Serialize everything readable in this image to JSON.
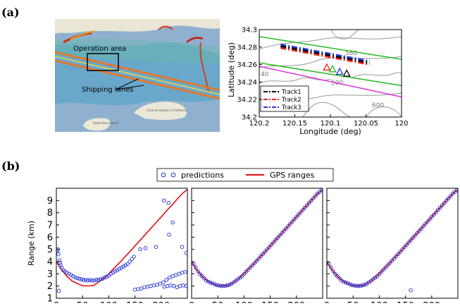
{
  "panels": {
    "a": "(a)",
    "b": "(b)"
  },
  "map": {
    "labels": [
      "Operation  area",
      "Shipping  lanes",
      "Santa Rosa Island",
      "Channel Islands of California"
    ],
    "colors": {
      "sea": "#8fb1cf",
      "land": "#ece8d8",
      "density_low": "#4aa0c8",
      "density_high": "#d83010",
      "lane": "#e07830"
    }
  },
  "chart_data": [
    {
      "type": "line",
      "title": "",
      "xlabel": "Longitude (deg)",
      "ylabel": "Latitude (deg)",
      "xlim": [
        120.2,
        120.0
      ],
      "ylim": [
        34.2,
        34.3
      ],
      "x_ticks": [
        "120.2",
        "120.15",
        "120.1",
        "120.05",
        "120"
      ],
      "y_ticks": [
        "34.2",
        "34.22",
        "34.24",
        "34.26",
        "34.28",
        "34.3"
      ],
      "contour_labels": [
        "580",
        "600",
        "40",
        "500"
      ],
      "legend": {
        "placement": "lower-left",
        "entries": [
          {
            "name": "Track1",
            "color": "#000000"
          },
          {
            "name": "Track2",
            "color": "#e8231c"
          },
          {
            "name": "Track3",
            "color": "#2437d6"
          }
        ]
      },
      "series": [
        {
          "name": "Track1",
          "color": "#000000",
          "x": [
            120.17,
            120.045
          ],
          "y": [
            34.281,
            34.262
          ]
        },
        {
          "name": "Track2",
          "color": "#e8231c",
          "x": [
            120.17,
            120.045
          ],
          "y": [
            34.279,
            34.26
          ]
        },
        {
          "name": "Track3",
          "color": "#2437d6",
          "x": [
            120.17,
            120.045
          ],
          "y": [
            34.283,
            34.264
          ]
        }
      ],
      "lanes": [
        {
          "color": "#22bb22",
          "x": [
            120.2,
            120.0
          ],
          "y": [
            34.292,
            34.266
          ]
        },
        {
          "color": "#22bb22",
          "x": [
            120.2,
            120.0
          ],
          "y": [
            34.262,
            34.236
          ]
        },
        {
          "color": "#dd33dd",
          "x": [
            120.2,
            120.0
          ],
          "y": [
            34.258,
            34.223
          ]
        }
      ],
      "triangles": [
        {
          "color": "#e8231c",
          "x": 120.105,
          "y": 34.257
        },
        {
          "color": "#22bb22",
          "x": 120.097,
          "y": 34.255
        },
        {
          "color": "#2437d6",
          "x": 120.087,
          "y": 34.252
        },
        {
          "color": "#000000",
          "x": 120.077,
          "y": 34.25
        }
      ]
    },
    {
      "type": "scatter",
      "legend": {
        "placement": "top",
        "entries": [
          {
            "name": "predictions",
            "color": "#1f2ed6",
            "marker": "circle"
          },
          {
            "name": "GPS ranges",
            "color": "#e01010",
            "marker": "line"
          }
        ]
      },
      "ylabel": "Range (km)",
      "xlim": [
        0,
        250
      ],
      "ylim": [
        1,
        10
      ],
      "x_ticks": [
        "0",
        "50",
        "100",
        "150",
        "200"
      ],
      "y_ticks": [
        "1",
        "2",
        "3",
        "4",
        "5",
        "6",
        "7",
        "8",
        "9"
      ],
      "gps_ranges": {
        "x": [
          0,
          10,
          20,
          30,
          40,
          50,
          60,
          70,
          80,
          90,
          100,
          110,
          120,
          130,
          140,
          150,
          160,
          170,
          180,
          190,
          200,
          210,
          220,
          230,
          240,
          250
        ],
        "y": [
          4.0,
          3.32,
          2.8,
          2.42,
          2.2,
          2.02,
          2.01,
          2.03,
          2.3,
          2.62,
          3.0,
          3.45,
          3.88,
          4.35,
          4.8,
          5.28,
          5.75,
          6.23,
          6.7,
          7.18,
          7.65,
          8.13,
          8.6,
          9.08,
          9.55,
          9.9
        ]
      },
      "subplots": [
        {
          "predictions_pattern": "noisy",
          "predictions": {
            "x": [
              2,
              4,
              6,
              8,
              10,
              13,
              16,
              20,
              24,
              28,
              32,
              36,
              40,
              44,
              48,
              52,
              56,
              60,
              64,
              68,
              72,
              76,
              80,
              84,
              88,
              92,
              96,
              100,
              104,
              108,
              112,
              116,
              120,
              124,
              128,
              132,
              136,
              140,
              144,
              148,
              3,
              5,
              7,
              150,
              156,
              162,
              168,
              174,
              180,
              186,
              192,
              198,
              204,
              210,
              216,
              222,
              228,
              234,
              240,
              246,
              236,
              242,
              248,
              206,
              212,
              218,
              224,
              230,
              160,
              170,
              190,
              205,
              214,
              215,
              222,
              240,
              248
            ],
            "y": [
              4.9,
              4.6,
              4.1,
              3.7,
              3.5,
              3.3,
              3.2,
              3.1,
              3.0,
              2.9,
              2.8,
              2.7,
              2.65,
              2.6,
              2.55,
              2.5,
              2.5,
              2.45,
              2.5,
              2.45,
              2.45,
              2.5,
              2.5,
              2.55,
              2.6,
              2.7,
              2.75,
              2.85,
              3.0,
              3.1,
              3.2,
              3.3,
              3.4,
              3.5,
              3.6,
              3.7,
              3.8,
              4.0,
              4.2,
              4.4,
              5.0,
              1.6,
              3.9,
              1.7,
              1.75,
              1.8,
              1.9,
              1.95,
              2.0,
              2.05,
              2.1,
              2.2,
              2.3,
              2.5,
              2.7,
              2.8,
              2.9,
              3.0,
              3.1,
              3.15,
              2.0,
              2.05,
              2.0,
              1.95,
              2.0,
              2.05,
              2.0,
              1.9,
              5.0,
              5.1,
              5.2,
              9.0,
              8.8,
              6.2,
              7.2,
              5.2,
              4.7
            ]
          }
        },
        {
          "predictions_pattern": "tight",
          "predictions": {
            "x": [
              4,
              8,
              12,
              16,
              20,
              24,
              28,
              32,
              36,
              40,
              44,
              48,
              52,
              56,
              60,
              64,
              68,
              72,
              76,
              80,
              84,
              88,
              92,
              96,
              100,
              104,
              108,
              112,
              116,
              120,
              124,
              128,
              132,
              136,
              140,
              144,
              148,
              152,
              156,
              160,
              164,
              168,
              172,
              176,
              180,
              184,
              188,
              192,
              196,
              200,
              204,
              208,
              212,
              216,
              220,
              224,
              228,
              232,
              236,
              240,
              244,
              248
            ],
            "y": [
              3.8,
              3.5,
              3.2,
              2.97,
              2.8,
              2.63,
              2.45,
              2.35,
              2.28,
              2.22,
              2.15,
              2.08,
              2.04,
              2.02,
              2.01,
              2.02,
              2.05,
              2.1,
              2.18,
              2.3,
              2.42,
              2.55,
              2.68,
              2.8,
              2.98,
              3.16,
              3.34,
              3.52,
              3.7,
              3.88,
              4.06,
              4.24,
              4.43,
              4.62,
              4.8,
              4.99,
              5.18,
              5.37,
              5.56,
              5.75,
              5.94,
              6.13,
              6.32,
              6.51,
              6.7,
              6.89,
              7.08,
              7.27,
              7.46,
              7.65,
              7.84,
              8.03,
              8.22,
              8.41,
              8.6,
              8.79,
              8.98,
              9.17,
              9.36,
              9.55,
              9.7,
              9.85
            ]
          }
        },
        {
          "predictions_pattern": "tight",
          "predictions": {
            "x": [
              4,
              8,
              12,
              16,
              20,
              24,
              28,
              32,
              36,
              40,
              44,
              48,
              52,
              56,
              60,
              64,
              68,
              72,
              76,
              80,
              84,
              88,
              92,
              96,
              100,
              104,
              108,
              112,
              116,
              120,
              124,
              128,
              132,
              136,
              140,
              144,
              148,
              152,
              156,
              160,
              164,
              168,
              172,
              176,
              180,
              184,
              188,
              192,
              196,
              200,
              204,
              208,
              212,
              216,
              220,
              224,
              228,
              232,
              236,
              240,
              244,
              248,
              160
            ],
            "y": [
              3.8,
              3.5,
              3.2,
              2.97,
              2.8,
              2.63,
              2.45,
              2.35,
              2.28,
              2.22,
              2.15,
              2.08,
              2.04,
              2.02,
              2.01,
              2.02,
              2.05,
              2.1,
              2.18,
              2.3,
              2.42,
              2.55,
              2.68,
              2.8,
              2.98,
              3.16,
              3.34,
              3.52,
              3.7,
              3.88,
              4.06,
              4.24,
              4.43,
              4.62,
              4.8,
              4.99,
              5.18,
              5.37,
              5.56,
              5.75,
              5.94,
              6.13,
              6.32,
              6.51,
              6.7,
              6.89,
              7.08,
              7.27,
              7.46,
              7.65,
              7.84,
              8.03,
              8.22,
              8.41,
              8.6,
              8.79,
              8.98,
              9.17,
              9.36,
              9.55,
              9.7,
              9.85,
              1.65
            ]
          }
        }
      ]
    }
  ]
}
